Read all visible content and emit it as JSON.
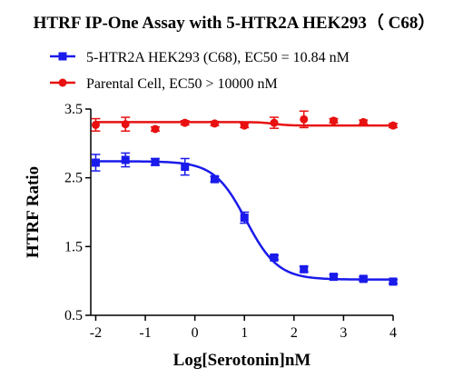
{
  "chart_data": {
    "type": "line",
    "title": "HTRF IP-One Assay with 5-HTR2A HEK293（ C68）",
    "xlabel": "Log[Serotonin]nM",
    "ylabel": "HTRF Ratio",
    "xlim": [
      -2.1,
      4
    ],
    "ylim": [
      0.5,
      3.5
    ],
    "x_ticks": [
      "-2",
      "-1",
      "0",
      "1",
      "2",
      "3",
      "4"
    ],
    "y_ticks": [
      "0.5",
      "1.5",
      "2.5",
      "3.5"
    ],
    "legend_position": "top-left",
    "series": [
      {
        "name": "5-HTR2A HEK293 (C68), EC50 = 10.84 nM",
        "color": "#1a1aeb",
        "marker": "square",
        "points": [
          {
            "x": -2.0,
            "y": 2.72,
            "err": 0.12
          },
          {
            "x": -1.4,
            "y": 2.76,
            "err": 0.1
          },
          {
            "x": -0.8,
            "y": 2.73,
            "err": 0.05
          },
          {
            "x": -0.2,
            "y": 2.66,
            "err": 0.12
          },
          {
            "x": 0.4,
            "y": 2.48,
            "err": 0.04
          },
          {
            "x": 1.0,
            "y": 1.92,
            "err": 0.08
          },
          {
            "x": 1.6,
            "y": 1.34,
            "err": 0.03
          },
          {
            "x": 2.2,
            "y": 1.17,
            "err": 0.04
          },
          {
            "x": 2.8,
            "y": 1.06,
            "err": 0.03
          },
          {
            "x": 3.4,
            "y": 1.03,
            "err": 0.03
          },
          {
            "x": 4.0,
            "y": 0.99,
            "err": 0.03
          }
        ],
        "fit": {
          "bottom": 1.02,
          "top": 2.74,
          "logec50": 1.035,
          "hill": -1.35
        }
      },
      {
        "name": "Parental Cell, EC50 > 10000 nM",
        "color": "#e81010",
        "marker": "circle",
        "points": [
          {
            "x": -2.0,
            "y": 3.27,
            "err": 0.09
          },
          {
            "x": -1.4,
            "y": 3.28,
            "err": 0.1
          },
          {
            "x": -0.8,
            "y": 3.21,
            "err": 0.03
          },
          {
            "x": -0.2,
            "y": 3.3,
            "err": 0.03
          },
          {
            "x": 0.4,
            "y": 3.29,
            "err": 0.03
          },
          {
            "x": 1.0,
            "y": 3.26,
            "err": 0.03
          },
          {
            "x": 1.6,
            "y": 3.3,
            "err": 0.08
          },
          {
            "x": 2.2,
            "y": 3.35,
            "err": 0.12
          },
          {
            "x": 2.8,
            "y": 3.33,
            "err": 0.03
          },
          {
            "x": 3.4,
            "y": 3.31,
            "err": 0.03
          },
          {
            "x": 4.0,
            "y": 3.26,
            "err": 0.03
          }
        ],
        "fit": {
          "bottom": 3.31,
          "top": 3.26,
          "logec50": 1.6,
          "hill": 3.0
        }
      }
    ]
  }
}
